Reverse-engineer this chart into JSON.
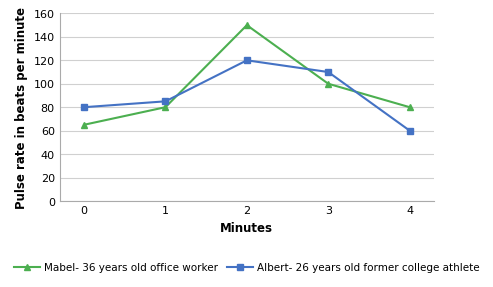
{
  "x": [
    0,
    1,
    2,
    3,
    4
  ],
  "mabel_values": [
    65,
    80,
    150,
    100,
    80
  ],
  "albert_values": [
    80,
    85,
    120,
    110,
    60
  ],
  "mabel_label": "Mabel- 36 years old office worker",
  "albert_label": "Albert- 26 years old former college athlete",
  "mabel_color": "#4caf50",
  "albert_color": "#4472c4",
  "xlabel": "Minutes",
  "ylabel": "Pulse rate in beats per minute",
  "ylim": [
    0,
    160
  ],
  "xlim": [
    -0.3,
    4.3
  ],
  "yticks": [
    0,
    20,
    40,
    60,
    80,
    100,
    120,
    140,
    160
  ],
  "xticks": [
    0,
    1,
    2,
    3,
    4
  ],
  "axis_label_fontsize": 8.5,
  "legend_fontsize": 7.5,
  "tick_fontsize": 8,
  "background_color": "#ffffff",
  "grid_color": "#d0d0d0"
}
